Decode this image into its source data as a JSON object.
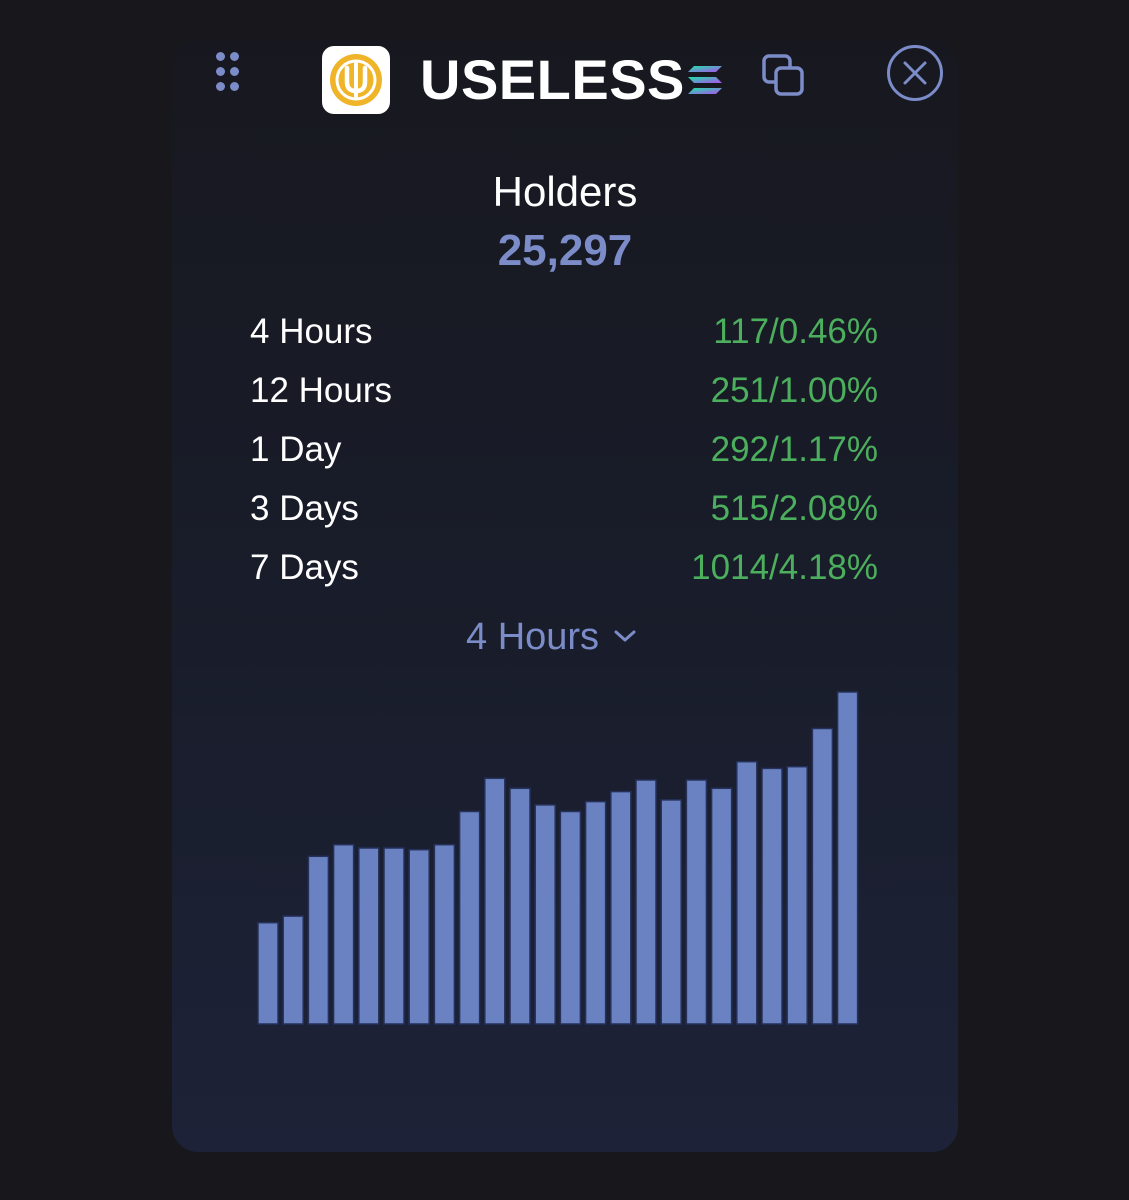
{
  "header": {
    "token_name": "USELESS",
    "icons": {
      "drag": "drag-handle-icon",
      "logo": "useless-logo-icon",
      "chain": "solana-icon",
      "copy": "copy-icon",
      "close": "close-icon"
    },
    "logo_colors": {
      "ring": "#f0b429",
      "background": "#ffffff"
    }
  },
  "holders": {
    "label": "Holders",
    "value": "25,297"
  },
  "stats": [
    {
      "label": "4 Hours",
      "value": "117/0.46%"
    },
    {
      "label": "12 Hours",
      "value": "251/1.00%"
    },
    {
      "label": "1 Day",
      "value": "292/1.17%"
    },
    {
      "label": "3 Days",
      "value": "515/2.08%"
    },
    {
      "label": "7 Days",
      "value": "1014/4.18%"
    }
  ],
  "period_select": {
    "selected": "4 Hours",
    "icon": "chevron-down-icon"
  },
  "colors": {
    "accent": "#7b8cc8",
    "positive": "#4caf5d",
    "bar": "#6b82c2",
    "background": "#17171c"
  },
  "chart_data": {
    "type": "bar",
    "values": [
      30.5,
      32.5,
      50.5,
      54,
      53,
      53,
      52.5,
      54,
      64,
      74,
      71,
      66,
      64,
      67,
      70,
      73.5,
      67.5,
      73.5,
      71,
      79,
      77,
      77.5,
      89,
      100
    ],
    "ylim": [
      0,
      100
    ],
    "grid": false,
    "legend": "none"
  }
}
